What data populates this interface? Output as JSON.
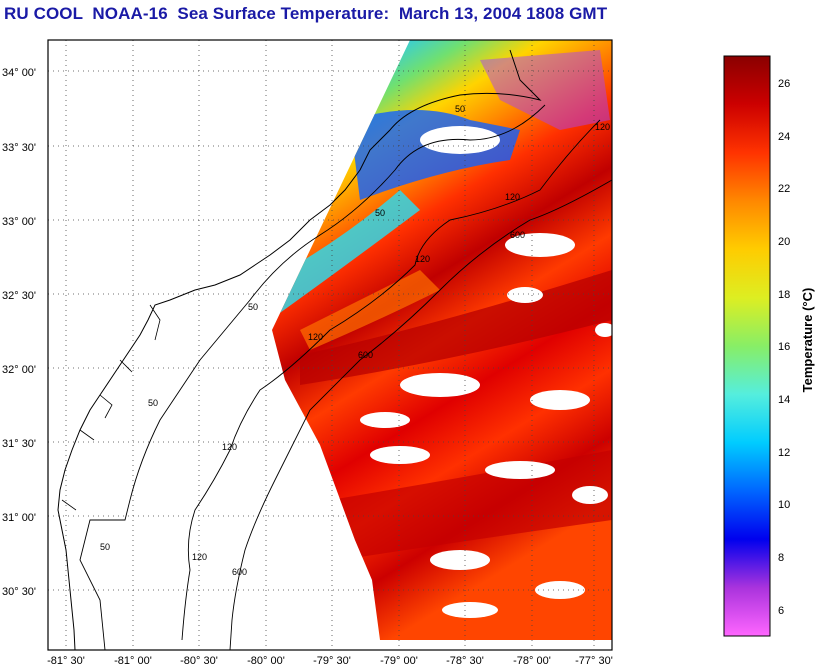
{
  "title": "RU COOL  NOAA-16  Sea Surface Temperature:  March 13, 2004 1808 GMT",
  "map": {
    "lon_range": [
      -81.5,
      -77.25
    ],
    "lat_range": [
      30.2,
      34.2
    ],
    "lat_ticks": [
      "34° 00'",
      "33° 30'",
      "33° 00'",
      "32° 30'",
      "32° 00'",
      "31° 30'",
      "31° 00'",
      "30° 30'"
    ],
    "lon_ticks": [
      "-81° 30'",
      "-81° 00'",
      "-80° 30'",
      "-80° 00'",
      "-79° 30'",
      "-79° 00'",
      "-78° 30'",
      "-78° 00'",
      "-77° 30'"
    ],
    "contour_labels": [
      "50",
      "50",
      "50",
      "50",
      "50",
      "120",
      "120",
      "120",
      "120",
      "120",
      "120",
      "600",
      "600",
      "600"
    ]
  },
  "colorbar": {
    "label": "Temperature (°C)",
    "ticks": [
      "26",
      "24",
      "22",
      "20",
      "18",
      "16",
      "14",
      "12",
      "10",
      "8",
      "6"
    ],
    "range": [
      5,
      27
    ],
    "colors": [
      "#ff66ff",
      "#aa33dd",
      "#0000ee",
      "#0066ff",
      "#00ccff",
      "#55eedd",
      "#88ee66",
      "#ddee22",
      "#ffcc00",
      "#ff8800",
      "#ff3300",
      "#cc0000",
      "#8a0000"
    ]
  }
}
